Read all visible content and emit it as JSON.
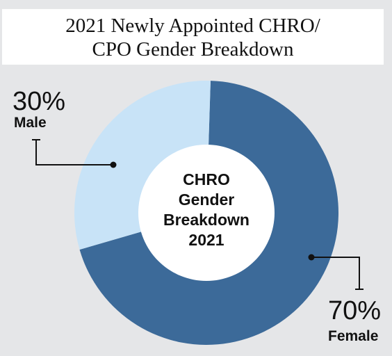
{
  "title": {
    "line1": "2021 Newly Appointed CHRO/",
    "line2": "CPO Gender Breakdown"
  },
  "center_label": {
    "line1": "CHRO",
    "line2": "Gender",
    "line3": "Breakdown",
    "line4": "2021"
  },
  "colors": {
    "background": "#e5e6e8",
    "female": "#3c6a99",
    "male": "#c8e3f7",
    "hole": "#ffffff"
  },
  "chart_data": {
    "type": "pie",
    "variant": "donut",
    "title": "2021 Newly Appointed CHRO/ CPO Gender Breakdown",
    "center_label": "CHRO Gender Breakdown 2021",
    "slices": [
      {
        "label": "Female",
        "value": 70,
        "display": "70%",
        "color": "#3c6a99"
      },
      {
        "label": "Male",
        "value": 30,
        "display": "30%",
        "color": "#c8e3f7"
      }
    ]
  }
}
